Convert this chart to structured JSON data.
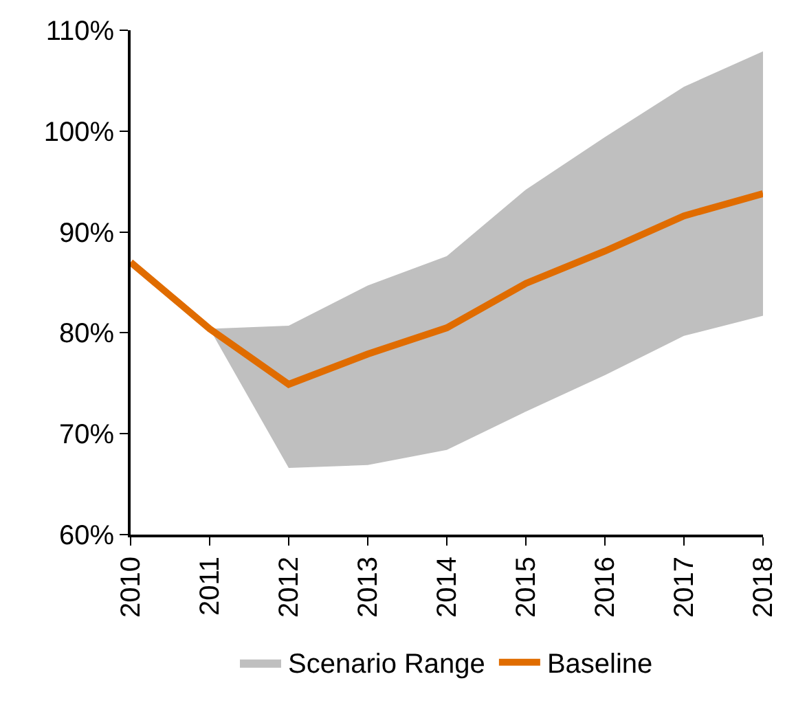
{
  "chart_data": {
    "type": "line",
    "categories": [
      "2010",
      "2011",
      "2012",
      "2013",
      "2014",
      "2015",
      "2016",
      "2017",
      "2018"
    ],
    "series": [
      {
        "name": "Scenario Range",
        "type": "area",
        "color": "#bfbfbf",
        "values": [
          null,
          null,
          null,
          null,
          null,
          null,
          null,
          null,
          null
        ],
        "lower": [
          null,
          80.4,
          66.6,
          66.9,
          68.4,
          72.2,
          75.8,
          79.7,
          81.7
        ],
        "upper": [
          null,
          80.4,
          80.7,
          84.7,
          87.6,
          94.2,
          99.4,
          104.4,
          107.9
        ]
      },
      {
        "name": "Baseline",
        "color": "#e06c00",
        "values": [
          87.0,
          80.4,
          74.9,
          77.9,
          80.5,
          84.9,
          88.1,
          91.6,
          93.8
        ]
      }
    ],
    "ylim": [
      60,
      110
    ],
    "yticks": [
      {
        "value": 60,
        "label": "60%"
      },
      {
        "value": 70,
        "label": "70%"
      },
      {
        "value": 80,
        "label": "80%"
      },
      {
        "value": 90,
        "label": "90%"
      },
      {
        "value": 100,
        "label": "100%"
      },
      {
        "value": 110,
        "label": "110%"
      }
    ],
    "legend": "bottom",
    "marker": "none",
    "line_style": "solid"
  }
}
